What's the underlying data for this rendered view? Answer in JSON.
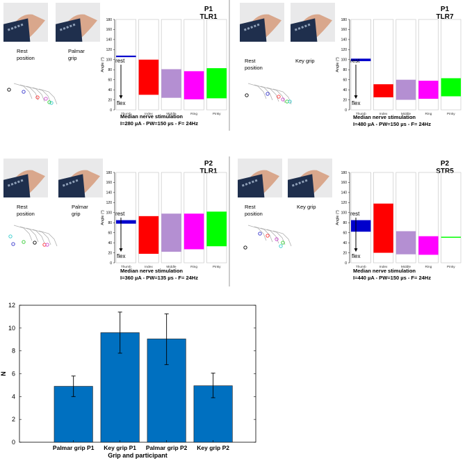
{
  "panels": [
    {
      "participant": "P1",
      "electrode": "TLR1",
      "photo_labels": [
        [
          "Rest",
          "position"
        ],
        [
          "Palmar",
          "grip"
        ]
      ],
      "stim_title": "Median nerve stimulation",
      "stim_params": "I=280 µA - PW=150 µs - F= 24Hz"
    },
    {
      "participant": "P1",
      "electrode": "TLR7",
      "photo_labels": [
        [
          "Rest",
          "position"
        ],
        [
          "Key grip"
        ]
      ],
      "stim_title": "Median nerve stimulation",
      "stim_params": "I=480 µA - PW=150 µs - F= 24Hz"
    },
    {
      "participant": "P2",
      "electrode": "TLR1",
      "photo_labels": [
        [
          "Rest",
          "position"
        ],
        [
          "Palmar",
          "grip"
        ]
      ],
      "stim_title": "Median nerve stimulation",
      "stim_params": "I=360 µA - PW=135 µs - F= 24Hz"
    },
    {
      "participant": "P2",
      "electrode": "STR5",
      "photo_labels": [
        [
          "Rest",
          "position"
        ],
        [
          "Key grip"
        ]
      ],
      "stim_title": "Median nerve stimulation",
      "stim_params": "I=440 µA - PW=150 µs - F= 24Hz"
    }
  ],
  "chart_data": [
    {
      "type": "floating-bar",
      "panel": "P1 TLR1",
      "categories": [
        "Thumb",
        "Index",
        "Middle",
        "Ring",
        "Pinky"
      ],
      "ranges": [
        [
          105,
          108
        ],
        [
          30,
          100
        ],
        [
          24,
          81
        ],
        [
          21,
          77
        ],
        [
          23,
          83
        ]
      ],
      "colors": [
        "#0000cc",
        "#ff0000",
        "#b48fd2",
        "#ff00ff",
        "#00ff00"
      ],
      "ylabel": "Angle (°)",
      "ylim": [
        0,
        180
      ],
      "yticks": [
        0,
        20,
        40,
        60,
        80,
        100,
        120,
        140,
        160,
        180
      ],
      "annotation_rest": "rest",
      "annotation_flex": "flex"
    },
    {
      "type": "floating-bar",
      "panel": "P1 TLR7",
      "categories": [
        "Thumb",
        "Index",
        "Middle",
        "Ring",
        "Pinky"
      ],
      "ranges": [
        [
          97,
          102
        ],
        [
          25,
          51
        ],
        [
          20,
          60
        ],
        [
          22,
          58
        ],
        [
          27,
          63
        ]
      ],
      "colors": [
        "#0000cc",
        "#ff0000",
        "#b48fd2",
        "#ff00ff",
        "#00ff00"
      ],
      "ylabel": "Angle (°)",
      "ylim": [
        0,
        180
      ],
      "yticks": [
        0,
        20,
        40,
        60,
        80,
        100,
        120,
        140,
        160,
        180
      ],
      "annotation_rest": "rest",
      "annotation_flex": "flex"
    },
    {
      "type": "floating-bar",
      "panel": "P2 TLR1",
      "categories": [
        "Thumb",
        "Index",
        "Middle",
        "Ring",
        "Pinky"
      ],
      "ranges": [
        [
          78,
          85
        ],
        [
          18,
          93
        ],
        [
          22,
          98
        ],
        [
          27,
          98
        ],
        [
          33,
          102
        ]
      ],
      "colors": [
        "#0000cc",
        "#ff0000",
        "#b48fd2",
        "#ff00ff",
        "#00ff00"
      ],
      "ylabel": "Angle (°)",
      "ylim": [
        0,
        180
      ],
      "yticks": [
        0,
        20,
        40,
        60,
        80,
        100,
        120,
        140,
        160,
        180
      ],
      "annotation_rest": "rest",
      "annotation_flex": "flex"
    },
    {
      "type": "floating-bar",
      "panel": "P2 STR5",
      "categories": [
        "Thumb",
        "Index",
        "Middle",
        "Ring",
        "Pinky"
      ],
      "ranges": [
        [
          62,
          85
        ],
        [
          20,
          118
        ],
        [
          17,
          63
        ],
        [
          16,
          53
        ],
        [
          50,
          52
        ]
      ],
      "colors": [
        "#0000cc",
        "#ff0000",
        "#b48fd2",
        "#ff00ff",
        "#00ff00"
      ],
      "ylabel": "Angle (°)",
      "ylim": [
        0,
        180
      ],
      "yticks": [
        0,
        20,
        40,
        60,
        80,
        100,
        120,
        140,
        160,
        180
      ],
      "annotation_rest": "rest",
      "annotation_flex": "flex"
    },
    {
      "type": "bar",
      "categories": [
        "Palmar grip P1",
        "Key grip P1",
        "Palmar grip P2",
        "Key grip P2"
      ],
      "values": [
        4.9,
        9.6,
        9.05,
        4.95
      ],
      "errors": [
        [
          4.0,
          5.8
        ],
        [
          7.8,
          11.4
        ],
        [
          6.8,
          11.25
        ],
        [
          3.9,
          6.05
        ]
      ],
      "color": "#0070c0",
      "xlabel": "Grip and participant",
      "ylabel": "N",
      "ylim": [
        0,
        12
      ],
      "yticks": [
        0,
        2,
        4,
        6,
        8,
        10,
        12
      ],
      "grid": false,
      "legend": "none"
    }
  ]
}
